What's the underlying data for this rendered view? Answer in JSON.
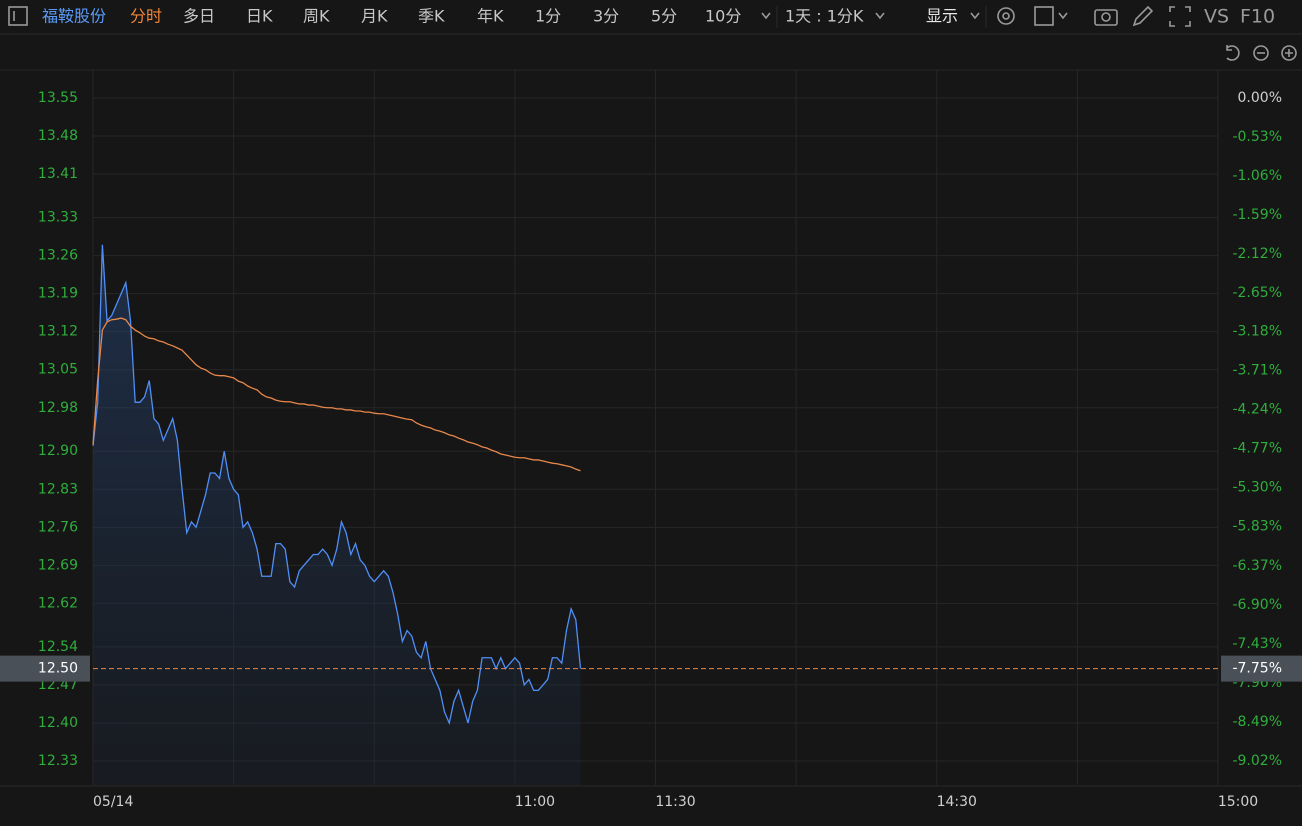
{
  "toolbar": {
    "stock": "福鞍股份",
    "active": "分时",
    "periods": [
      "多日",
      "日K",
      "周K",
      "月K",
      "季K",
      "年K",
      "1分",
      "3分",
      "5分",
      "10分"
    ],
    "range": "1天 : 1分K",
    "display": "显示",
    "vs": "VS",
    "f10": "F10"
  },
  "chart_data": {
    "type": "line",
    "x": [
      0,
      1,
      2,
      3,
      4,
      5,
      6,
      7,
      8,
      9,
      10,
      11,
      12,
      13,
      14,
      15,
      16,
      17,
      18,
      19,
      20,
      21,
      22,
      23,
      24,
      25,
      26,
      27,
      28,
      29,
      30,
      31,
      32,
      33,
      34,
      35,
      36,
      37,
      38,
      39,
      40,
      41,
      42,
      43,
      44,
      45,
      46,
      47,
      48,
      49,
      50,
      51,
      52,
      53,
      54,
      55,
      56,
      57,
      58,
      59,
      60,
      61,
      62,
      63,
      64,
      65,
      66,
      67,
      68,
      69,
      70,
      71,
      72,
      73,
      74,
      75,
      76,
      77,
      78,
      79,
      80,
      81,
      82,
      83,
      84,
      85,
      86,
      87,
      88,
      89,
      90,
      91,
      92,
      93,
      94,
      95,
      96,
      97,
      98,
      99,
      100,
      101,
      102,
      103,
      104
    ],
    "series": [
      {
        "color": "#4f8ff7",
        "area": true,
        "values": [
          12.91,
          12.99,
          13.28,
          13.14,
          13.15,
          13.17,
          13.19,
          13.21,
          13.14,
          12.99,
          12.99,
          13.0,
          13.03,
          12.96,
          12.95,
          12.92,
          12.94,
          12.96,
          12.92,
          12.83,
          12.75,
          12.77,
          12.76,
          12.79,
          12.82,
          12.86,
          12.86,
          12.85,
          12.9,
          12.85,
          12.83,
          12.82,
          12.76,
          12.77,
          12.75,
          12.72,
          12.67,
          12.67,
          12.67,
          12.73,
          12.73,
          12.72,
          12.66,
          12.65,
          12.68,
          12.69,
          12.7,
          12.71,
          12.71,
          12.72,
          12.71,
          12.69,
          12.72,
          12.77,
          12.75,
          12.71,
          12.73,
          12.7,
          12.69,
          12.67,
          12.66,
          12.67,
          12.68,
          12.67,
          12.64,
          12.6,
          12.55,
          12.57,
          12.56,
          12.53,
          12.52,
          12.55,
          12.5,
          12.48,
          12.46,
          12.42,
          12.4,
          12.44,
          12.46,
          12.43,
          12.4,
          12.44,
          12.46,
          12.52,
          12.52,
          12.52,
          12.5,
          12.52,
          12.5,
          12.51,
          12.52,
          12.51,
          12.47,
          12.48,
          12.46,
          12.46,
          12.47,
          12.48,
          12.52,
          12.52,
          12.51,
          12.57,
          12.61,
          12.59,
          12.5
        ]
      },
      {
        "color": "#e8874a",
        "area": false,
        "values": [
          12.912,
          13.031,
          13.123,
          13.138,
          13.142,
          13.143,
          13.145,
          13.142,
          13.13,
          13.123,
          13.118,
          13.112,
          13.108,
          13.107,
          13.103,
          13.101,
          13.097,
          13.094,
          13.09,
          13.086,
          13.077,
          13.068,
          13.059,
          13.053,
          13.05,
          13.044,
          13.04,
          13.039,
          13.039,
          13.037,
          13.035,
          13.029,
          13.026,
          13.02,
          13.016,
          13.013,
          13.005,
          13.0,
          12.998,
          12.994,
          12.992,
          12.991,
          12.991,
          12.989,
          12.987,
          12.987,
          12.985,
          12.985,
          12.983,
          12.981,
          12.98,
          12.98,
          12.978,
          12.978,
          12.976,
          12.976,
          12.974,
          12.974,
          12.972,
          12.972,
          12.97,
          12.969,
          12.969,
          12.967,
          12.965,
          12.963,
          12.961,
          12.959,
          12.958,
          12.952,
          12.948,
          12.945,
          12.943,
          12.939,
          12.937,
          12.934,
          12.93,
          12.928,
          12.924,
          12.921,
          12.917,
          12.915,
          12.912,
          12.908,
          12.906,
          12.902,
          12.899,
          12.895,
          12.893,
          12.891,
          12.889,
          12.888,
          12.888,
          12.886,
          12.884,
          12.884,
          12.882,
          12.88,
          12.878,
          12.877,
          12.875,
          12.873,
          12.871,
          12.867,
          12.864
        ]
      }
    ],
    "xlim": [
      0,
      240
    ],
    "xticks": [
      {
        "value": 0,
        "label": "05/14"
      },
      {
        "value": 90,
        "label": "11:00"
      },
      {
        "value": 120,
        "label": "11:30"
      },
      {
        "value": 180,
        "label": "14:30"
      },
      {
        "value": 240,
        "label": "15:00"
      }
    ],
    "xgrid": [
      0,
      30,
      60,
      90,
      120,
      150,
      180,
      210,
      240
    ],
    "ylim": [
      12.33,
      13.55
    ],
    "yticks": [
      13.55,
      13.48,
      13.41,
      13.33,
      13.26,
      13.19,
      13.12,
      13.05,
      12.98,
      {
        "value": 12.9,
        "label": "12.90"
      },
      12.83,
      12.76,
      12.69,
      12.62,
      12.54,
      12.47,
      {
        "value": 12.4,
        "label": "12.40"
      },
      12.33
    ],
    "y2lim": [
      -9.02,
      0
    ],
    "y2ticks": [
      {
        "value": 0,
        "label": "0.00%"
      },
      {
        "value": -0.53,
        "label": "-0.53%"
      },
      {
        "value": -1.06,
        "label": "-1.06%"
      },
      {
        "value": -1.59,
        "label": "-1.59%"
      },
      {
        "value": -2.12,
        "label": "-2.12%"
      },
      {
        "value": -2.65,
        "label": "-2.65%"
      },
      {
        "value": -3.18,
        "label": "-3.18%"
      },
      {
        "value": -3.71,
        "label": "-3.71%"
      },
      {
        "value": -4.24,
        "label": "-4.24%"
      },
      {
        "value": -4.77,
        "label": "-4.77%"
      },
      {
        "value": -5.3,
        "label": "-5.30%"
      },
      {
        "value": -5.83,
        "label": "-5.83%"
      },
      {
        "value": -6.37,
        "label": "-6.37%"
      },
      {
        "value": -6.9,
        "label": "-6.90%"
      },
      {
        "value": -7.43,
        "label": "-7.43%"
      },
      {
        "value": -7.96,
        "label": "-7.96%"
      },
      {
        "value": -8.49,
        "label": "-8.49%"
      },
      {
        "value": -9.02,
        "label": "-9.02%"
      }
    ],
    "current": {
      "value": 12.5,
      "label": "12.50",
      "pct": -7.75,
      "pct_label": "-7.75%"
    },
    "grid": true
  }
}
